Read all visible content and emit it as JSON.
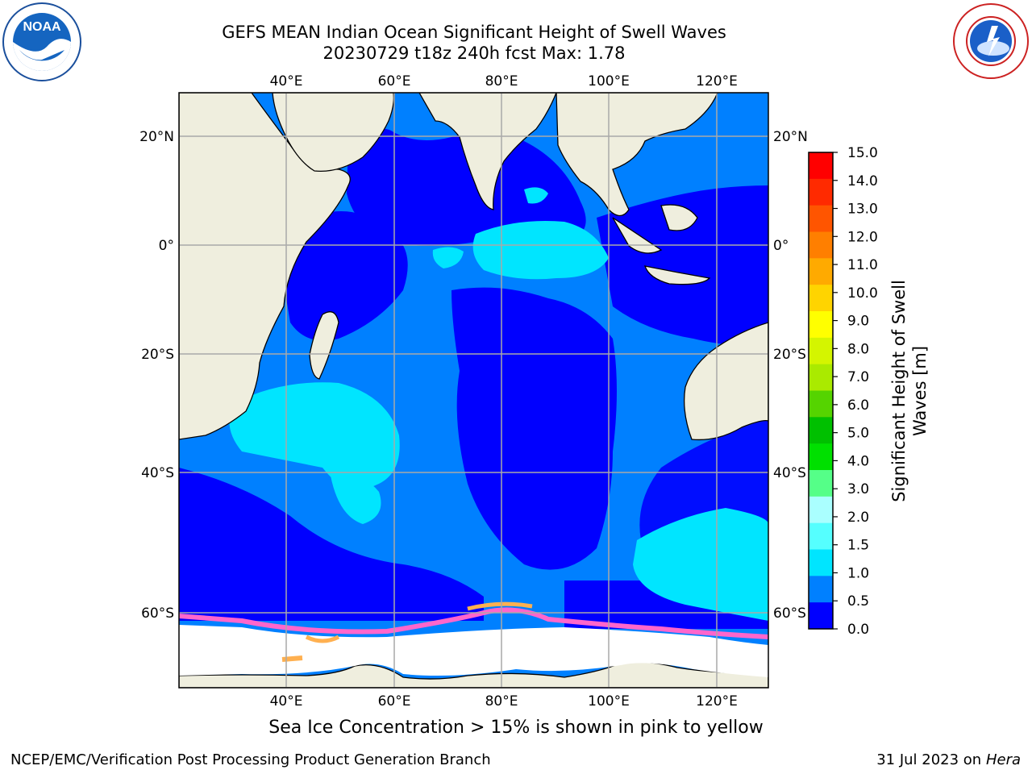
{
  "title": {
    "line1": "GEFS MEAN Indian Ocean Significant Height of Swell Waves",
    "line2": "20230729 t18z 240h fcst   Max: 1.78"
  },
  "map": {
    "lon_range": [
      20,
      130
    ],
    "lat_range": [
      -70,
      28
    ],
    "lon_ticks": [
      "40°E",
      "60°E",
      "80°E",
      "100°E",
      "120°E"
    ],
    "lat_ticks": [
      "20°N",
      "0°",
      "20°S",
      "40°S",
      "60°S"
    ]
  },
  "colorbar": {
    "label_line1": "Significant Height of Swell",
    "label_line2": "Waves [m]",
    "ticks": [
      "15.0",
      "14.0",
      "13.0",
      "12.0",
      "11.0",
      "10.0",
      "9.0",
      "8.0",
      "7.0",
      "6.0",
      "5.0",
      "4.0",
      "3.0",
      "2.0",
      "1.5",
      "1.0",
      "0.5",
      "0.0"
    ],
    "colors": [
      "#ff0000",
      "#ff2a00",
      "#ff5500",
      "#ff7f00",
      "#ffaa00",
      "#ffd400",
      "#ffff00",
      "#d4f500",
      "#aaea00",
      "#55d400",
      "#00c000",
      "#00e000",
      "#55ff88",
      "#aaffff",
      "#55ffff",
      "#00e5ff",
      "#0080ff",
      "#0000ff"
    ]
  },
  "legend_note": "Sea Ice Concentration > 15% is shown in pink to yellow",
  "footer": {
    "left": "NCEP/EMC/Verification Post Processing Product Generation Branch",
    "right_date": "31 Jul 2023 on ",
    "right_machine": "Hera"
  },
  "colors": {
    "land": "#efeede",
    "ocean_deep_blue": "#0000ff",
    "ocean_mid_blue": "#0080ff",
    "ocean_cyan": "#00e5ff",
    "ice_pink": "#ff66cc",
    "ice_orange": "#ffb050",
    "grid": "#a9a9a9"
  }
}
